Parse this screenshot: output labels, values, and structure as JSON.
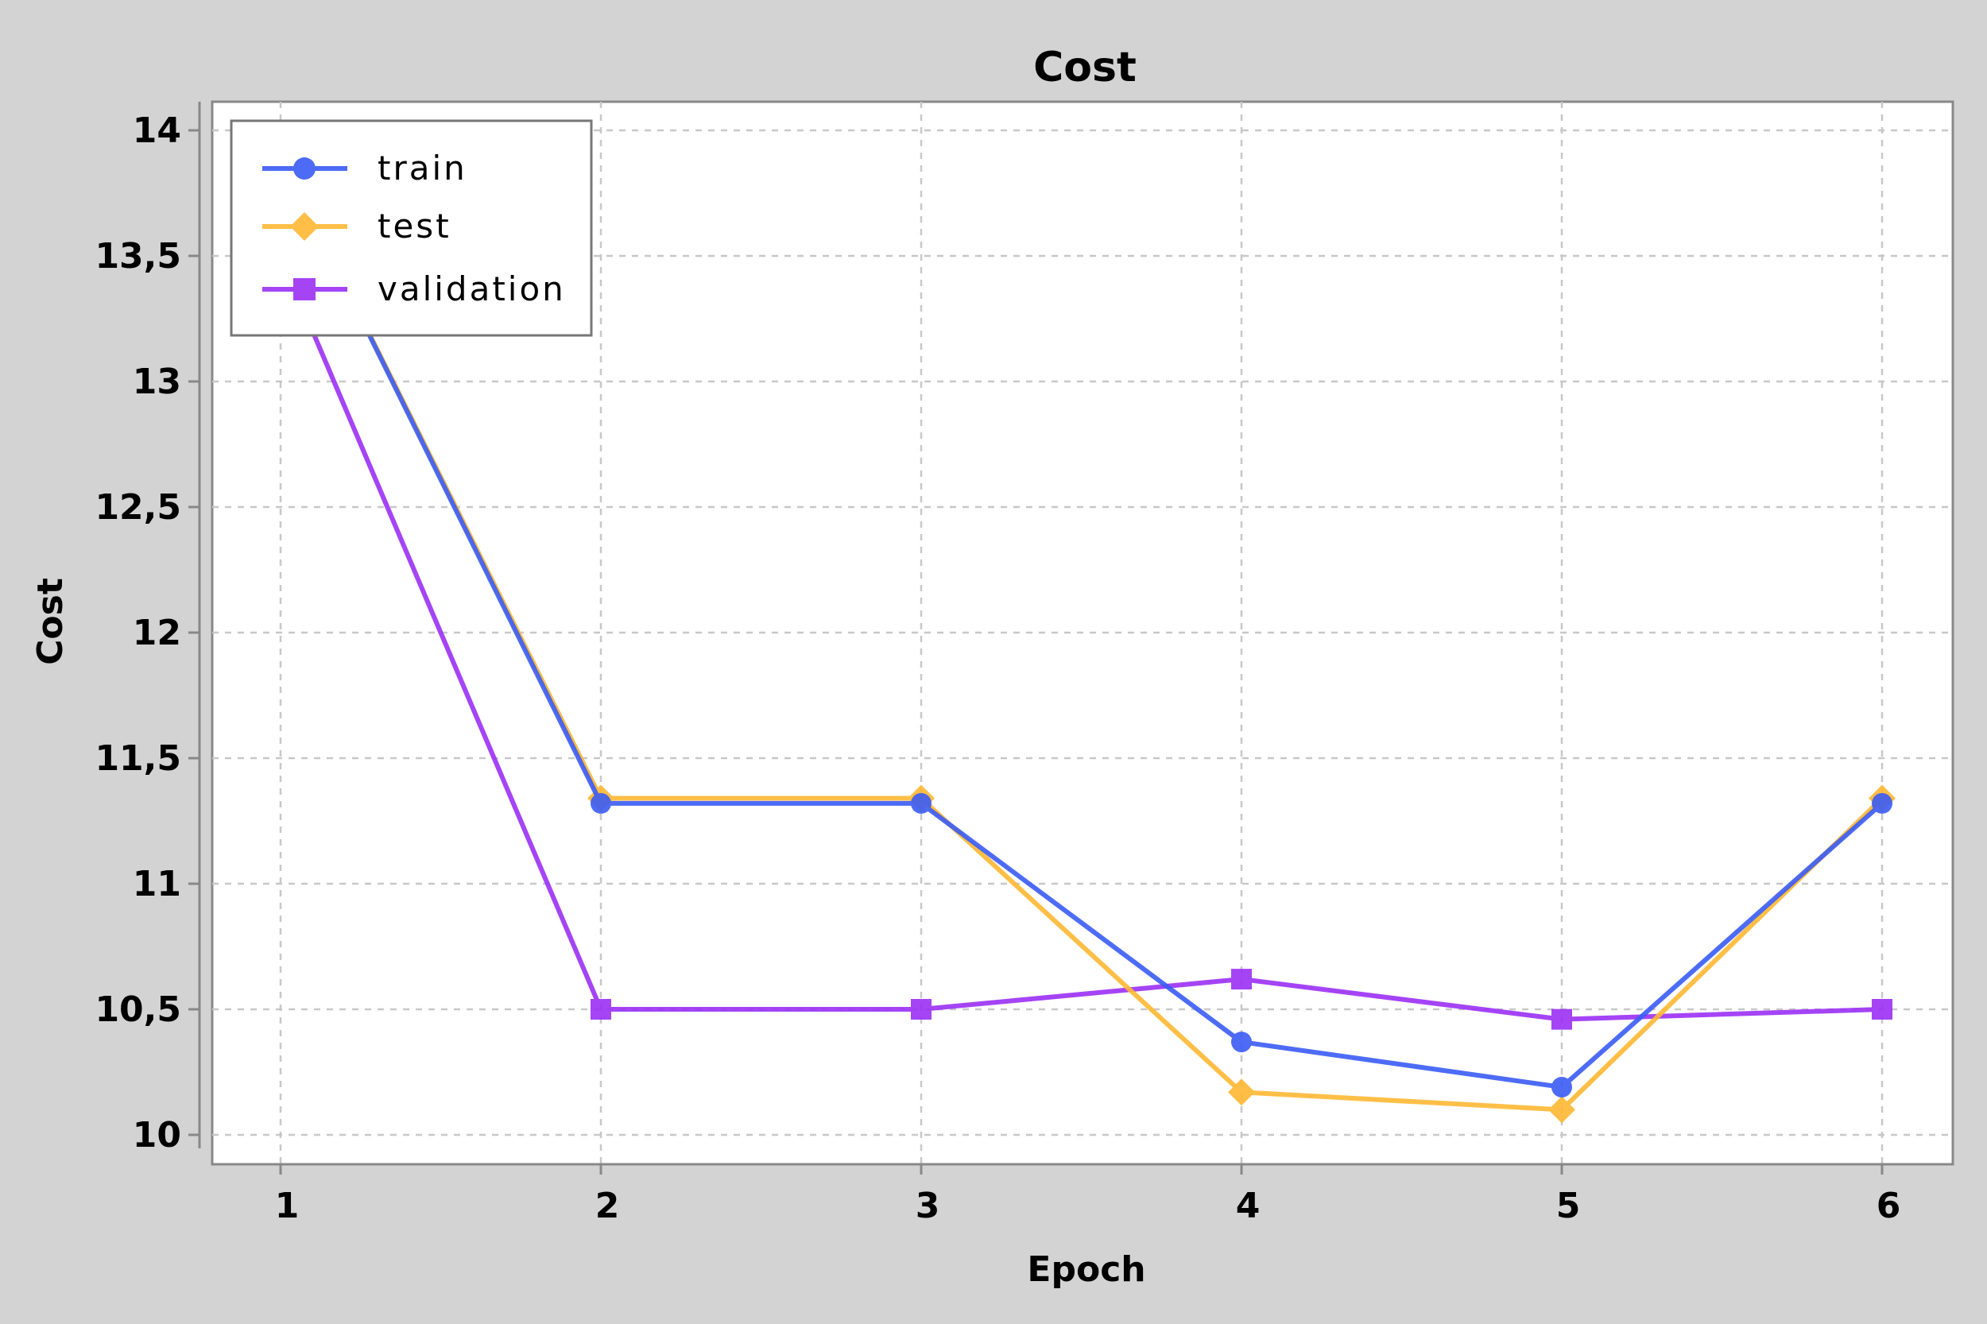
{
  "chart_data": {
    "type": "line",
    "title": "Cost",
    "xlabel": "Epoch",
    "ylabel": "Cost",
    "x": [
      1,
      2,
      3,
      4,
      5,
      6
    ],
    "xticks": [
      "1",
      "2",
      "3",
      "4",
      "5",
      "6"
    ],
    "yticks": [
      "10",
      "10,5",
      "11",
      "11,5",
      "12",
      "12,5",
      "13",
      "13,5",
      "14"
    ],
    "ylim": [
      9.97,
      14.1
    ],
    "grid": true,
    "legend_position": "top-left",
    "series": [
      {
        "name": "train",
        "color": "#3a5cf5",
        "marker": "circle",
        "values": [
          13.9,
          11.32,
          11.32,
          10.37,
          10.19,
          11.32
        ]
      },
      {
        "name": "test",
        "color": "#ffb833",
        "marker": "diamond",
        "values": [
          13.9,
          11.34,
          11.34,
          10.17,
          10.1,
          11.34
        ]
      },
      {
        "name": "validation",
        "color": "#9b30f5",
        "marker": "square",
        "values": [
          13.5,
          10.5,
          10.5,
          10.62,
          10.46,
          10.5
        ]
      }
    ]
  }
}
